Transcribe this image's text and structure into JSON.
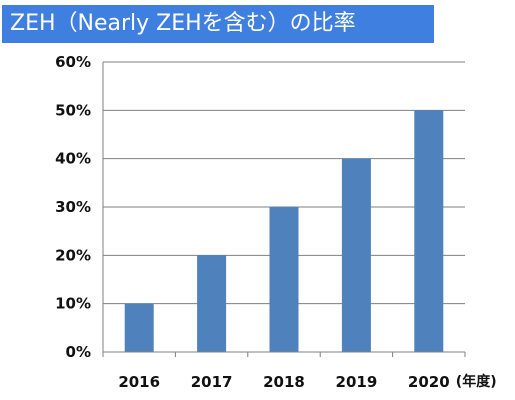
{
  "title": "ZEH（Nearly ZEHを含む）の比率",
  "colors": {
    "title_background": "#3f7fe0",
    "bar": "#4f81bd",
    "gridline": "#7f7f7f"
  },
  "chart_data": {
    "type": "bar",
    "title": "ZEH（Nearly ZEHを含む）の比率",
    "categories": [
      "2016",
      "2017",
      "2018",
      "2019",
      "2020"
    ],
    "values": [
      10,
      20,
      30,
      40,
      50
    ],
    "xlabel": "(年度)",
    "ylabel": "",
    "ylim": [
      0,
      60
    ],
    "yticks": [
      "0%",
      "10%",
      "20%",
      "30%",
      "40%",
      "50%",
      "60%"
    ],
    "grid": true,
    "legend": "none"
  }
}
